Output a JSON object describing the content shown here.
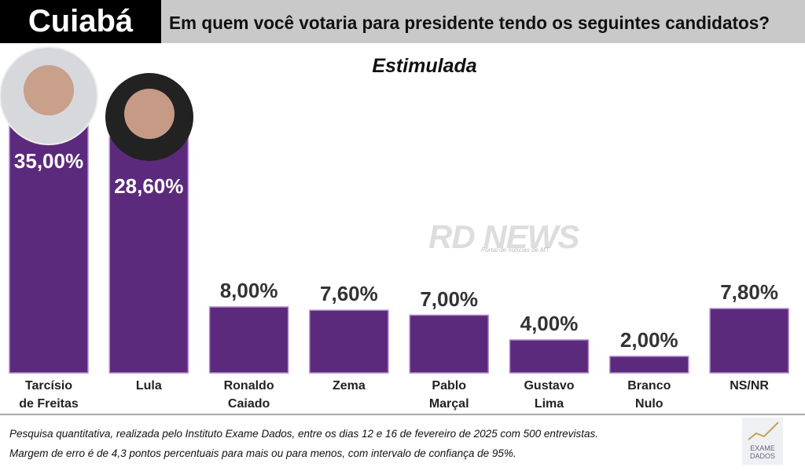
{
  "chart_data": {
    "type": "bar",
    "city": "Cuiabá",
    "title": "Em quem você votaria para presidente tendo os seguintes candidatos?",
    "subtitle": "Estimulada",
    "categories": [
      "Tarcísio\nde Freitas",
      "Lula",
      "Ronaldo\nCaiado",
      "Zema",
      "Pablo\nMarçal",
      "Gustavo\nLima",
      "Branco\nNulo",
      "NS/NR"
    ],
    "values": [
      35,
      28.6,
      8,
      7.6,
      7,
      4,
      2,
      7.8
    ],
    "value_labels": [
      "35,00%",
      "28,60%",
      "8,00%",
      "7,60%",
      "7,00%",
      "4,00%",
      "2,00%",
      "7,80%"
    ],
    "color": "#5c2a7c",
    "watermark": "RD NEWS",
    "watermark_tagline": "Portal de notícias de MT",
    "footnote": [
      "Pesquisa quantitativa, realizada pelo Instituto Exame Dados, entre os dias 12 e 16 de fevereiro de 2025 com 500 entrevistas.",
      "Margem de erro é de 4,3 pontos percentuais para mais ou para menos, com intervalo de confiança de 95%."
    ],
    "logo": "EXAME\nDADOS"
  }
}
